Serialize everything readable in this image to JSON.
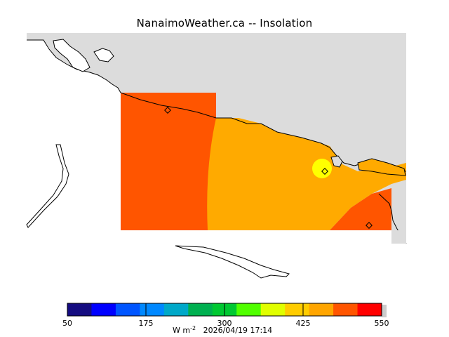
{
  "title": "NanaimoWeather.ca -- Insolation",
  "colorbar": {
    "colors": [
      "#140c80",
      "#0000ff",
      "#0055ff",
      "#0088ff",
      "#00a8c8",
      "#00b050",
      "#00c832",
      "#50ff00",
      "#e0ff00",
      "#ffcc00",
      "#ffa500",
      "#ff5500",
      "#ff0000"
    ],
    "tick_labels": [
      "50",
      "175",
      "300",
      "425",
      "550"
    ],
    "units_label": "W m",
    "units_exponent": "-2",
    "timestamp": "2026/04/19 17:14"
  },
  "map": {
    "land_color": "#dcdcdc",
    "water_color": "#ffffff",
    "field_colors": {
      "high": "#ff5500",
      "mid": "#ffaa00",
      "peak": "#ffff00"
    },
    "markers": [
      "station-west",
      "station-nanaimo",
      "station-southeast"
    ]
  }
}
